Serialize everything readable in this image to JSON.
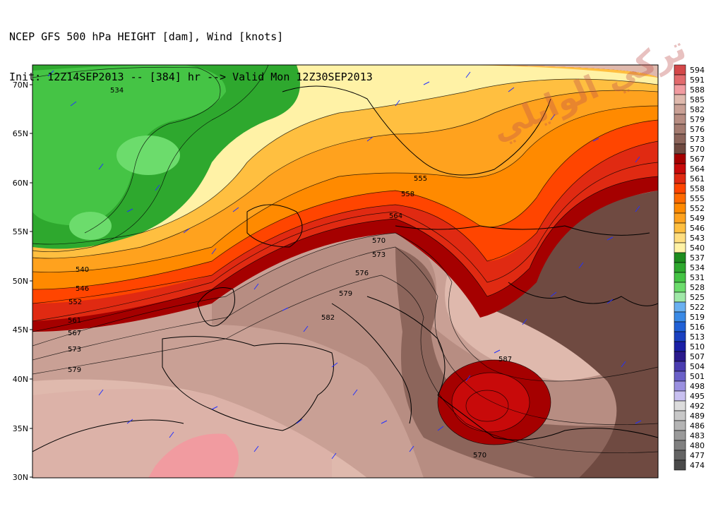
{
  "header": {
    "line1": "NCEP GFS 500 hPa HEIGHT [dam], Wind [knots]",
    "line2": "Init: 12Z14SEP2013 -- [384] hr --> Valid Mon 12Z30SEP2013"
  },
  "watermark": "تركي الوايلي",
  "lat_labels": [
    "70N",
    "65N",
    "60N",
    "55N",
    "50N",
    "45N",
    "40N",
    "35N",
    "30N"
  ],
  "contour_labels": [
    "534",
    "540",
    "546",
    "552",
    "561",
    "567",
    "573",
    "579",
    "555",
    "558",
    "564",
    "570",
    "573",
    "576",
    "579",
    "582",
    "587",
    "570"
  ],
  "colorbar": {
    "labels": [
      "594",
      "591",
      "588",
      "585",
      "582",
      "579",
      "576",
      "573",
      "570",
      "567",
      "564",
      "561",
      "558",
      "555",
      "552",
      "549",
      "546",
      "543",
      "540",
      "537",
      "534",
      "531",
      "528",
      "525",
      "522",
      "519",
      "516",
      "513",
      "510",
      "507",
      "504",
      "501",
      "498",
      "495",
      "492",
      "489",
      "486",
      "483",
      "480",
      "477",
      "474"
    ],
    "colors": [
      "#d4484a",
      "#e26a6d",
      "#f19ba0",
      "#dfb9ad",
      "#c9a095",
      "#b78d82",
      "#a47b70",
      "#8c655b",
      "#6f4a41",
      "#a50000",
      "#c80a0a",
      "#e02a12",
      "#ff4500",
      "#ff6a00",
      "#ff8a00",
      "#ffa21e",
      "#ffbf40",
      "#ffde80",
      "#fff2a6",
      "#1e8c1e",
      "#2ea82e",
      "#45c445",
      "#6cdc6c",
      "#a0e8a8",
      "#6ab0f0",
      "#3a8ae6",
      "#2060d6",
      "#1a40c0",
      "#1a1fa6",
      "#2a1a8c",
      "#4a3cb0",
      "#6a60c8",
      "#9a90e0",
      "#c8c0f0",
      "#dcdcdc",
      "#c8c8c8",
      "#b4b4b4",
      "#9a9a9a",
      "#808080",
      "#646464",
      "#4a4a4a"
    ]
  }
}
